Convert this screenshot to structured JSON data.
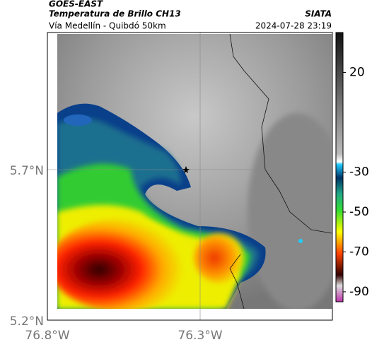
{
  "header": {
    "source": "GOES-EAST",
    "title": "Temperatura de Brillo CH13",
    "org": "SIATA",
    "subtitle": "Vía Medellín - Quibdó 50km",
    "datetime": "2024-07-28 23:19"
  },
  "axes": {
    "y_labels": [
      "5.7°N",
      "5.2°N"
    ],
    "x_labels": [
      "76.8°W",
      "76.3°W"
    ]
  },
  "colorbar": {
    "ticks": [
      20,
      -30,
      -50,
      -70,
      -90
    ]
  }
}
